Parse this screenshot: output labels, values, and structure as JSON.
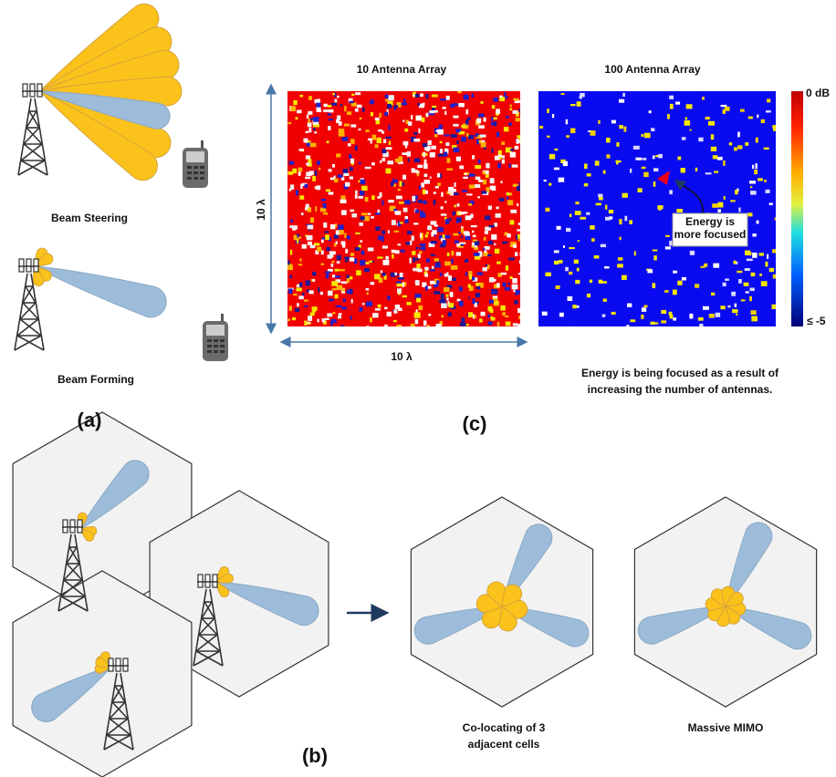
{
  "panel_a": {
    "label": "(a)",
    "beam_steering": "Beam Steering",
    "beam_forming": "Beam Forming"
  },
  "panel_c": {
    "label": "(c)",
    "left_title": "10 Antenna Array",
    "right_title": "100 Antenna Array",
    "colorbar_top": "0 dB",
    "colorbar_bottom": "≤ -5",
    "y_dimension": "10 λ",
    "x_dimension": "10 λ",
    "annotation": [
      "Energy is",
      "more focused"
    ],
    "caption": [
      "Energy is being focused as a result of",
      "increasing the number of antennas."
    ]
  },
  "panel_b": {
    "label": "(b)",
    "colocating_caption": [
      "Co-locating of 3",
      "adjacent cells"
    ],
    "massive_mimo_caption": "Massive MIMO"
  }
}
